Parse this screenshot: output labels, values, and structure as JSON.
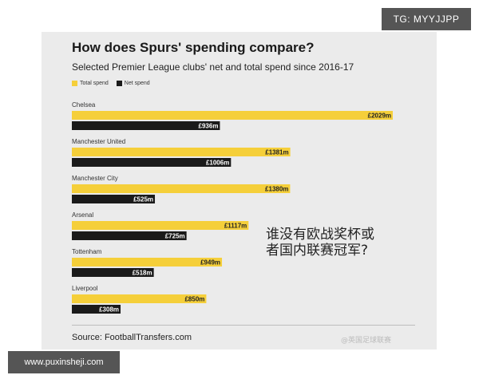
{
  "watermarks": {
    "tg": "TG: MYYJJPP",
    "url": "www.puxinsheji.com",
    "weibo": "@英国足球联赛"
  },
  "overlay_text": [
    "谁没有欧战奖杯或",
    "者国内联赛冠军?"
  ],
  "colors": {
    "total": "#f5cf3a",
    "net": "#1a1a1a",
    "card": "#ebebeb"
  },
  "chart_data": {
    "type": "bar",
    "orientation": "horizontal",
    "title": "How does Spurs' spending compare?",
    "subtitle": "Selected Premier League clubs' net and total spend since 2016-17",
    "source": "Source: FootballTransfers.com",
    "legend": {
      "placement": "top-left",
      "entries": [
        "Total spend",
        "Net spend"
      ]
    },
    "unit": "£m",
    "xlim": [
      0,
      2029
    ],
    "grid": false,
    "categories": [
      "Chelsea",
      "Manchester United",
      "Manchester City",
      "Arsenal",
      "Tottenham",
      "Liverpool"
    ],
    "series": [
      {
        "name": "Total spend",
        "values": [
          2029,
          1381,
          1380,
          1117,
          949,
          850
        ],
        "labels": [
          "£2029m",
          "£1381m",
          "£1380m",
          "£1117m",
          "£949m",
          "£850m"
        ]
      },
      {
        "name": "Net spend",
        "values": [
          936,
          1006,
          525,
          725,
          518,
          308
        ],
        "labels": [
          "£936m",
          "£1006m",
          "£525m",
          "£725m",
          "£518m",
          "£308m"
        ]
      }
    ]
  }
}
